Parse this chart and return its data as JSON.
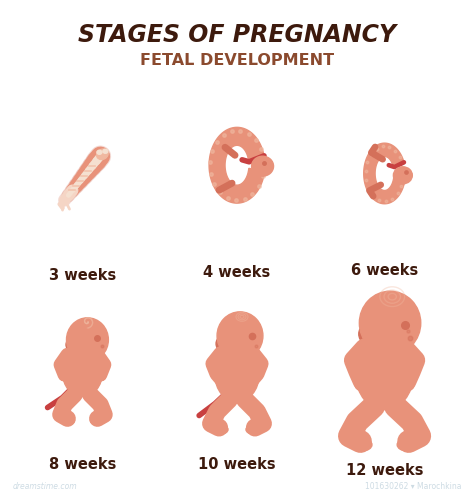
{
  "title_line1": "STAGES OF PREGNANCY",
  "title_line2": "FETAL DEVELOPMENT",
  "title_color": "#3d1a0d",
  "subtitle_color": "#8b4a2e",
  "bg_color": "#ffffff",
  "skin_color": "#e8927a",
  "skin_dark": "#d4705a",
  "skin_light": "#f0b8a0",
  "skin_pale": "#f5d5c5",
  "spine_color": "#f5e0d0",
  "cord_color": "#c84040",
  "label_color": "#3d1a0d",
  "watermark_color": "#b8ccd8",
  "dreamstimeText": "dreamstime.com",
  "watermark": "101630262 ▾ Marochkina"
}
